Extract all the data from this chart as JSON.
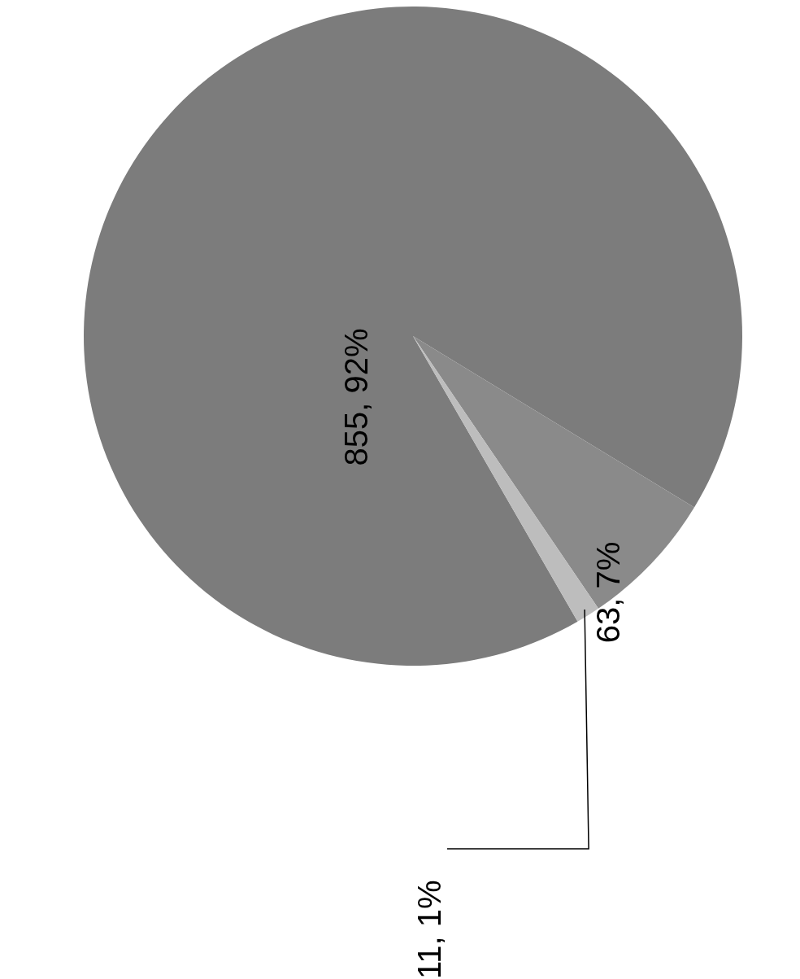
{
  "chart_data": {
    "type": "pie",
    "categories": [
      null,
      null,
      null
    ],
    "values": [
      855,
      63,
      11
    ],
    "colors": [
      "#7c7c7c",
      "#8a8a8a",
      "#bdbdbd"
    ],
    "value_labels": [
      "855, 92%",
      "63, 7%",
      "11, 1%"
    ]
  }
}
